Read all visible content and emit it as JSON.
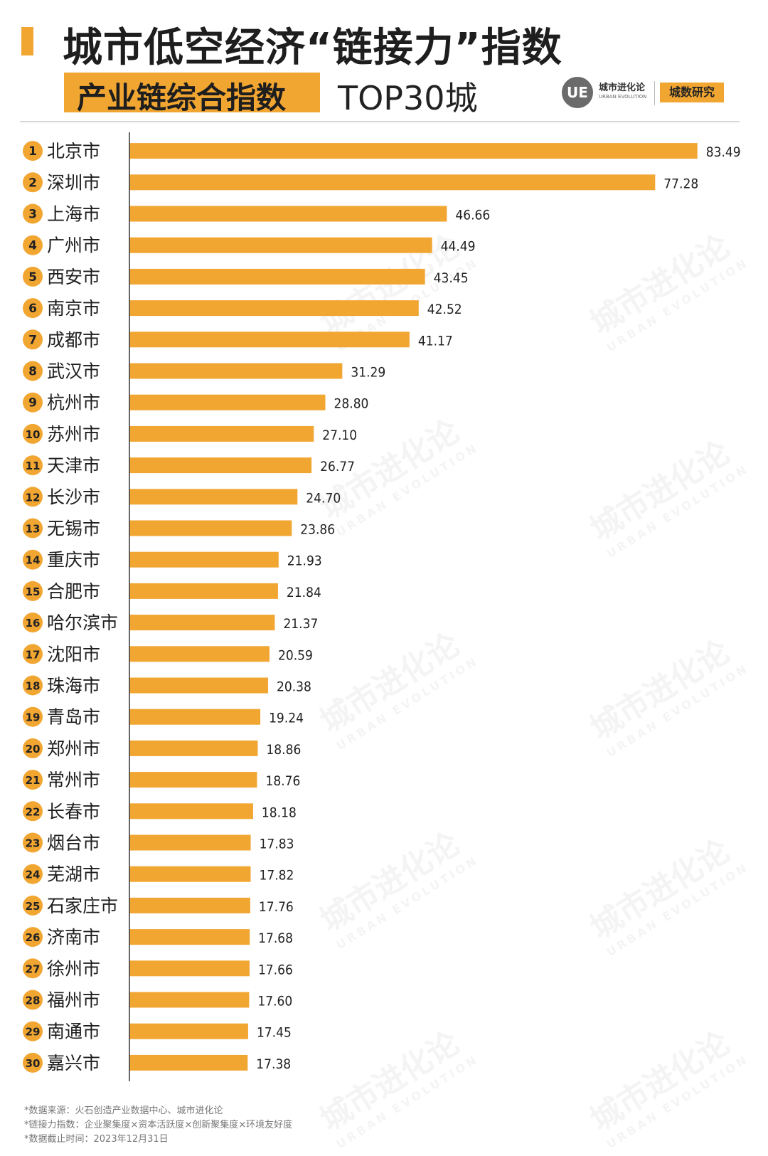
{
  "title": "城市低空经济“链接力”指数",
  "subtitle": "产业链综合指数",
  "subtitle_suffix": "TOP30城",
  "brand": {
    "logo_text": "UE",
    "name": "城市进化论",
    "name_en": "URBAN EVOLUTION",
    "tag": "城数研究"
  },
  "watermark": {
    "text": "城市进化论",
    "text_en": "URBAN EVOLUTION"
  },
  "colors": {
    "bar": "#f2a632",
    "accent": "#f2a632",
    "rank_circle": "#f2a632"
  },
  "chart_data": {
    "type": "bar",
    "orientation": "horizontal",
    "categories": [
      "北京市",
      "深圳市",
      "上海市",
      "广州市",
      "西安市",
      "南京市",
      "成都市",
      "武汉市",
      "杭州市",
      "苏州市",
      "天津市",
      "长沙市",
      "无锡市",
      "重庆市",
      "合肥市",
      "哈尔滨市",
      "沈阳市",
      "珠海市",
      "青岛市",
      "郑州市",
      "常州市",
      "长春市",
      "烟台市",
      "芜湖市",
      "石家庄市",
      "济南市",
      "徐州市",
      "福州市",
      "南通市",
      "嘉兴市"
    ],
    "ranks": [
      "1",
      "2",
      "3",
      "4",
      "5",
      "6",
      "7",
      "8",
      "9",
      "10",
      "11",
      "12",
      "13",
      "14",
      "15",
      "16",
      "17",
      "18",
      "19",
      "20",
      "21",
      "22",
      "23",
      "24",
      "25",
      "26",
      "27",
      "28",
      "29",
      "30"
    ],
    "values": [
      83.49,
      77.28,
      46.66,
      44.49,
      43.45,
      42.52,
      41.17,
      31.29,
      28.8,
      27.1,
      26.77,
      24.7,
      23.86,
      21.93,
      21.84,
      21.37,
      20.59,
      20.38,
      19.24,
      18.86,
      18.76,
      18.18,
      17.83,
      17.82,
      17.76,
      17.68,
      17.66,
      17.6,
      17.45,
      17.38
    ],
    "value_labels": [
      "83.49",
      "77.28",
      "46.66",
      "44.49",
      "43.45",
      "42.52",
      "41.17",
      "31.29",
      "28.80",
      "27.10",
      "26.77",
      "24.70",
      "23.86",
      "21.93",
      "21.84",
      "21.37",
      "20.59",
      "20.38",
      "19.24",
      "18.86",
      "18.76",
      "18.18",
      "17.83",
      "17.82",
      "17.76",
      "17.68",
      "17.66",
      "17.60",
      "17.45",
      "17.38"
    ],
    "xlim": [
      0,
      90
    ],
    "xticks": [
      "0",
      "10",
      "20",
      "30",
      "40",
      "50",
      "60",
      "70",
      "80",
      "90"
    ],
    "grid": false,
    "legend": "none"
  },
  "footnotes": [
    "*数据来源：火石创造产业数据中心、城市进化论",
    "*链接力指数：企业聚集度×资本活跃度×创新聚集度×环境友好度",
    "*数据截止时间：2023年12月31日"
  ]
}
